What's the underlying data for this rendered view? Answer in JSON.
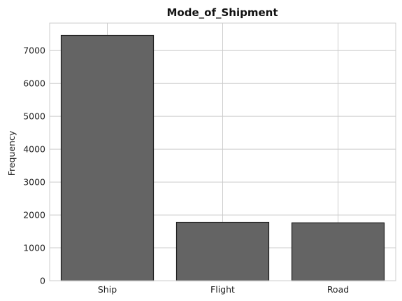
{
  "chart_data": {
    "type": "bar",
    "title": "Mode_of_Shipment",
    "xlabel": "",
    "ylabel": "Frequency",
    "categories": [
      "Ship",
      "Flight",
      "Road"
    ],
    "values": [
      7462,
      1777,
      1760
    ],
    "ylim": [
      0,
      7835
    ],
    "yticks": [
      0,
      1000,
      2000,
      3000,
      4000,
      5000,
      6000,
      7000
    ],
    "grid": true,
    "bar_color": "#646464",
    "bar_edge_color": "#1a1a1a",
    "grid_color": "#cccccc",
    "axes_edge_color": "#cccccc"
  }
}
